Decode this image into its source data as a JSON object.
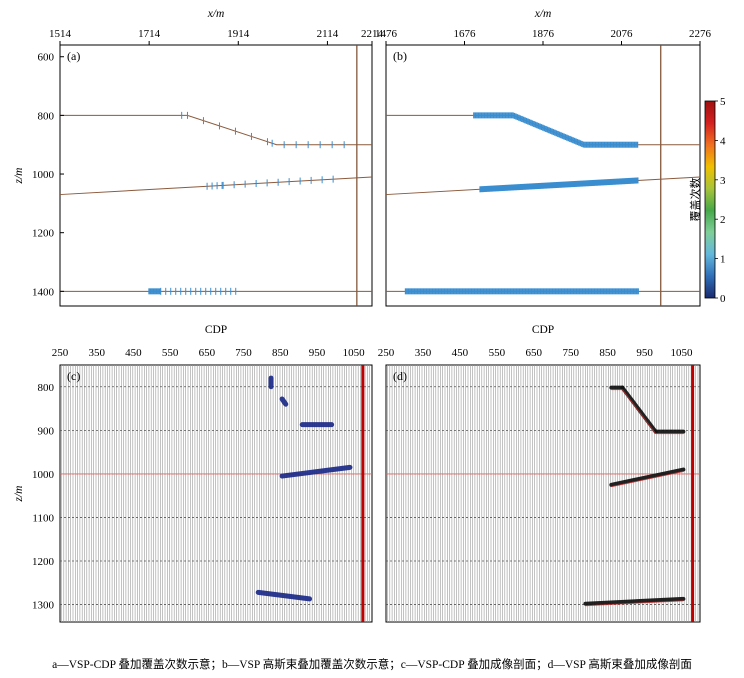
{
  "figure": {
    "caption": "a—VSP-CDP 叠加覆盖次数示意；b—VSP 高斯束叠加覆盖次数示意；c—VSP-CDP 叠加成像剖面；d—VSP 高斯束叠加成像剖面"
  },
  "panels": [
    {
      "id": "a",
      "label": "(a)",
      "type": "fold-map",
      "xlabel": "x/m",
      "ylabel": "z/m",
      "xlim": [
        1514,
        2214
      ],
      "ylim": [
        560,
        1450
      ],
      "xticks": [
        1514,
        1714,
        1914,
        2114,
        2214
      ],
      "yticks": [
        600,
        800,
        1000,
        1200,
        1400
      ],
      "well_x": 2180,
      "reflectors": [
        [
          [
            1514,
            800
          ],
          [
            1800,
            800
          ],
          [
            2000,
            900
          ],
          [
            2214,
            900
          ]
        ],
        [
          [
            1514,
            1070
          ],
          [
            2214,
            1010
          ]
        ],
        [
          [
            1514,
            1400
          ],
          [
            2214,
            1400
          ]
        ]
      ],
      "coverage": [
        {
          "x": [
            1787,
            1800
          ],
          "tick_step": 6,
          "tick_len": 4
        },
        {
          "x": [
            1800,
            1990
          ],
          "tick_step": 16,
          "tick_len": 10
        },
        {
          "x": [
            1990,
            2170
          ],
          "tick_step": 12,
          "tick_len": 10
        },
        {
          "x": [
            1844,
            1880
          ],
          "tick_step": 5,
          "tick_len": 10
        },
        {
          "x": [
            1880,
            2150
          ],
          "tick_step": 11,
          "tick_len": 10
        },
        {
          "x": [
            1714,
            1740
          ],
          "tick_step": 3,
          "tick_len": 10
        },
        {
          "x": [
            1740,
            1914
          ],
          "tick_step": 5,
          "tick_len": 10
        }
      ]
    },
    {
      "id": "b",
      "label": "(b)",
      "type": "fold-map",
      "xlabel": "x/m",
      "ylabel": "",
      "xlim": [
        1476,
        2276
      ],
      "ylim": [
        560,
        1450
      ],
      "xticks": [
        1476,
        1676,
        1876,
        2076,
        2276
      ],
      "yticks": [],
      "well_x": 2176,
      "reflectors": [
        [
          [
            1476,
            800
          ],
          [
            1800,
            800
          ],
          [
            1980,
            900
          ],
          [
            2276,
            900
          ]
        ],
        [
          [
            1476,
            1070
          ],
          [
            2276,
            1010
          ]
        ],
        [
          [
            1476,
            1400
          ],
          [
            2276,
            1400
          ]
        ]
      ],
      "coverage": [
        {
          "x": [
            1700,
            2120
          ],
          "tick_step": 3,
          "tick_len": 9
        },
        {
          "x": [
            1716,
            2120
          ],
          "tick_step": 3,
          "tick_len": 9
        },
        {
          "x": [
            1526,
            2120
          ],
          "tick_step": 3,
          "tick_len": 9
        }
      ]
    },
    {
      "id": "c",
      "label": "(c)",
      "type": "seismic",
      "xlabel": "CDP",
      "ylabel": "z/m",
      "xlim": [
        250,
        1100
      ],
      "ylim": [
        750,
        1340
      ],
      "xticks": [
        250,
        350,
        450,
        550,
        650,
        750,
        850,
        950,
        1050
      ],
      "yticks": [
        800,
        900,
        1000,
        1100,
        1200,
        1300
      ],
      "well_cdp": 1075,
      "events": [
        {
          "x": [
            825,
            825
          ],
          "z": [
            780,
            800
          ]
        },
        {
          "x": [
            855,
            865
          ],
          "z": [
            828,
            840
          ]
        },
        {
          "x": [
            910,
            990
          ],
          "z": [
            887,
            887
          ]
        },
        {
          "x": [
            855,
            1040
          ],
          "z": [
            1005,
            985
          ]
        },
        {
          "x": [
            790,
            930
          ],
          "z": [
            1272,
            1287
          ]
        }
      ]
    },
    {
      "id": "d",
      "label": "(d)",
      "type": "seismic",
      "xlabel": "CDP",
      "ylabel": "",
      "xlim": [
        250,
        1100
      ],
      "ylim": [
        750,
        1340
      ],
      "xticks": [
        250,
        350,
        450,
        550,
        650,
        750,
        850,
        950,
        1050
      ],
      "yticks": [
        800,
        900,
        1000,
        1100,
        1200,
        1300
      ],
      "well_cdp": 1080,
      "events": [
        {
          "x": [
            860,
            890
          ],
          "z": [
            802,
            802
          ]
        },
        {
          "x": [
            890,
            980
          ],
          "z": [
            802,
            903
          ]
        },
        {
          "x": [
            980,
            1055
          ],
          "z": [
            903,
            903
          ]
        },
        {
          "x": [
            860,
            1055
          ],
          "z": [
            1025,
            990
          ]
        },
        {
          "x": [
            790,
            1055
          ],
          "z": [
            1298,
            1287
          ]
        }
      ]
    }
  ],
  "colorbar": {
    "label": "覆盖次数",
    "ticks": [
      0,
      1,
      2,
      3,
      4,
      5
    ],
    "colors": [
      "#1a2a6e",
      "#2f6fb8",
      "#63b7dc",
      "#7fcf9a",
      "#46a84a",
      "#a8c43a",
      "#f0c000",
      "#f07020",
      "#d42020",
      "#a01010"
    ]
  },
  "colors": {
    "frame": "#000000",
    "reflector": "#8b5a3c",
    "well": "#7a4a2a",
    "coverage": "#3a8ed0",
    "grid_dash": "#555555",
    "red_line": "#e06666",
    "seis_line": "#9a9a9a",
    "event_c": "#1c2a88",
    "event_d": "#111111",
    "well_red": "#c00000"
  }
}
